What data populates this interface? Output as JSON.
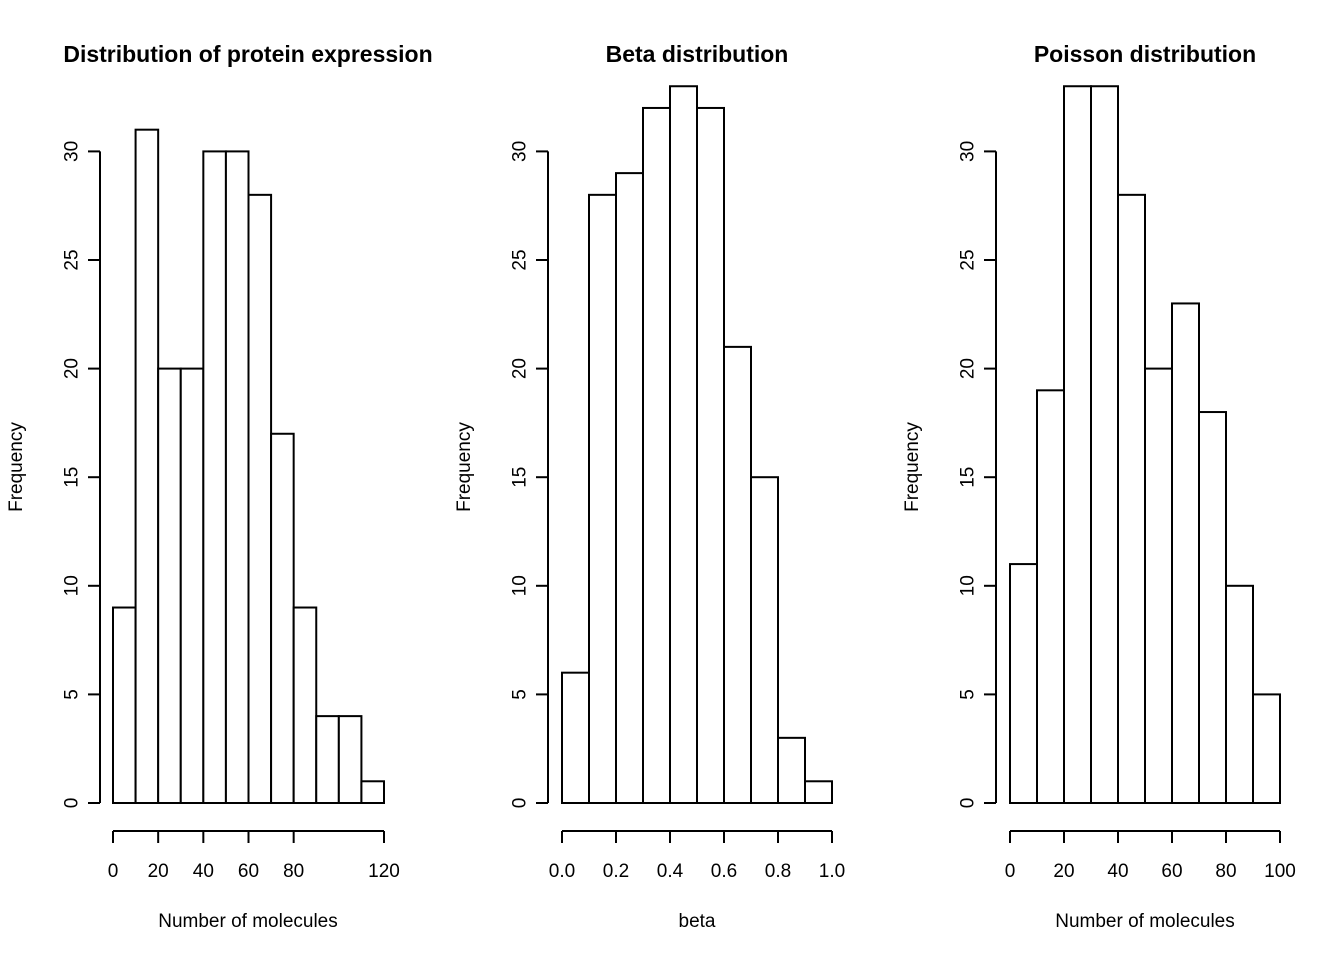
{
  "chart_data": [
    {
      "type": "bar",
      "title": "Distribution of protein expression",
      "xlabel": "Number of molecules",
      "ylabel": "Frequency",
      "bin_edges": [
        0,
        10,
        20,
        30,
        40,
        50,
        60,
        70,
        80,
        90,
        100,
        110,
        120
      ],
      "values": [
        9,
        31,
        20,
        20,
        30,
        30,
        28,
        17,
        9,
        4,
        4,
        1
      ],
      "xlim": [
        0,
        120
      ],
      "ylim": [
        0,
        31
      ],
      "xticks": [
        0,
        20,
        40,
        60,
        80,
        120
      ],
      "xtick_labels": [
        "0",
        "20",
        "40",
        "60",
        "80",
        "120"
      ],
      "yticks": [
        0,
        5,
        10,
        15,
        20,
        25,
        30
      ],
      "ytick_labels": [
        "0",
        "5",
        "10",
        "15",
        "20",
        "25",
        "30"
      ],
      "grid": false
    },
    {
      "type": "bar",
      "title": "Beta distribution",
      "xlabel": "beta",
      "ylabel": "Frequency",
      "bin_edges": [
        0.0,
        0.1,
        0.2,
        0.3,
        0.4,
        0.5,
        0.6,
        0.7,
        0.8,
        0.9,
        1.0
      ],
      "values": [
        6,
        28,
        29,
        32,
        33,
        32,
        21,
        15,
        3,
        1
      ],
      "xlim": [
        0,
        1
      ],
      "ylim": [
        0,
        33
      ],
      "xticks": [
        0.0,
        0.2,
        0.4,
        0.6,
        0.8,
        1.0
      ],
      "xtick_labels": [
        "0.0",
        "0.2",
        "0.4",
        "0.6",
        "0.8",
        "1.0"
      ],
      "yticks": [
        0,
        5,
        10,
        15,
        20,
        25,
        30
      ],
      "ytick_labels": [
        "0",
        "5",
        "10",
        "15",
        "20",
        "25",
        "30"
      ],
      "grid": false
    },
    {
      "type": "bar",
      "title": "Poisson distribution",
      "xlabel": "Number of molecules",
      "ylabel": "Frequency",
      "bin_edges": [
        0,
        10,
        20,
        30,
        40,
        50,
        60,
        70,
        80,
        90,
        100
      ],
      "values": [
        11,
        19,
        33,
        33,
        28,
        20,
        23,
        18,
        10,
        5
      ],
      "xlim": [
        0,
        100
      ],
      "ylim": [
        0,
        33
      ],
      "xticks": [
        0,
        20,
        40,
        60,
        80,
        100
      ],
      "xtick_labels": [
        "0",
        "20",
        "40",
        "60",
        "80",
        "100"
      ],
      "yticks": [
        0,
        5,
        10,
        15,
        20,
        25,
        30
      ],
      "ytick_labels": [
        "0",
        "5",
        "10",
        "15",
        "20",
        "25",
        "30"
      ],
      "grid": false
    }
  ]
}
